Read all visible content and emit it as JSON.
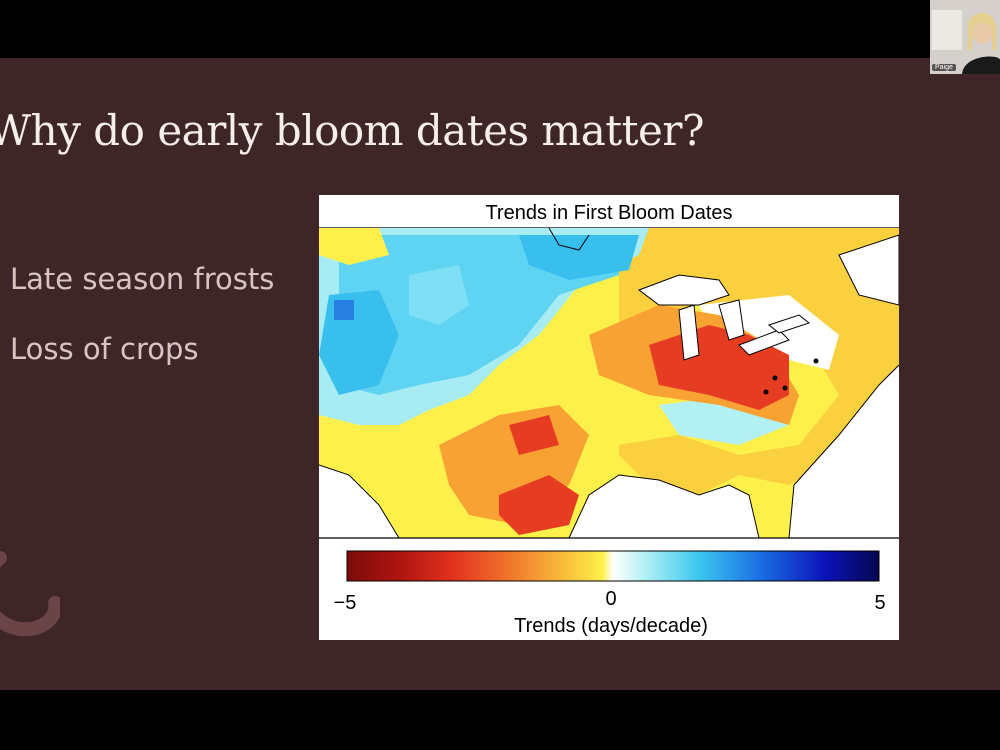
{
  "slide": {
    "title": "Why do early bloom dates matter?",
    "bullets": [
      "Late season frosts",
      "Loss of crops"
    ]
  },
  "figure": {
    "title": "Trends in First Bloom Dates",
    "colorbar": {
      "min_label": "−5",
      "mid_label": "0",
      "max_label": "5",
      "label": "Trends (days/decade)",
      "colors": [
        "#7a0c0a",
        "#d9221c",
        "#f07b2c",
        "#fbc23a",
        "#fdf04b",
        "#ffffff",
        "#9eeef2",
        "#33c6ef",
        "#1a6ce3",
        "#0a0aa8",
        "#06064e"
      ]
    }
  },
  "participant": {
    "name": "Paige"
  },
  "colors": {
    "slide_bg": "#3e2628",
    "title": "#f6eeea",
    "bullet": "#d8c5c0"
  }
}
